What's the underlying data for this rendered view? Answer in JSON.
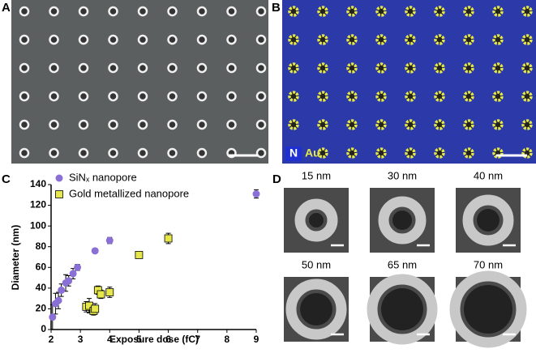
{
  "panels": {
    "a": "A",
    "b": "B",
    "c": "C",
    "d": "D"
  },
  "eds_legend": [
    "N",
    "Au"
  ],
  "thumbnails": [
    "15 nm",
    "30 nm",
    "40 nm",
    "50 nm",
    "65 nm",
    "70 nm"
  ],
  "chart_data": {
    "type": "scatter",
    "x_label": "Exposure dose (fC)",
    "y_label": "Diameter (nm)",
    "xlim": [
      2,
      9
    ],
    "xticks": [
      2,
      3,
      4,
      5,
      6,
      7,
      8,
      9
    ],
    "ylim": [
      0,
      140
    ],
    "yticks": [
      0,
      20,
      40,
      60,
      80,
      100,
      120,
      140
    ],
    "legend": "top-left",
    "series": [
      {
        "name": "SiNₓ nanopore",
        "color": "#8a70d6",
        "marker": "circle",
        "x": [
          2.05,
          2.15,
          2.25,
          2.35,
          2.5,
          2.6,
          2.75,
          2.9,
          3.5,
          4,
          9
        ],
        "values": [
          12,
          25,
          28,
          38,
          45,
          47,
          54,
          60,
          76,
          86,
          131
        ],
        "errors": [
          12,
          10,
          8,
          6,
          8,
          5,
          5,
          3,
          2,
          3,
          4
        ]
      },
      {
        "name": "Gold metallized nanopore",
        "color": "#e6e84a",
        "marker": "square",
        "x": [
          3.2,
          3.3,
          3.45,
          3.5,
          3.6,
          3.7,
          4,
          5,
          6
        ],
        "values": [
          22,
          23,
          18,
          20,
          38,
          34,
          36,
          72,
          88
        ],
        "errors": [
          5,
          7,
          4,
          5,
          4,
          4,
          5,
          3,
          5
        ]
      }
    ]
  }
}
